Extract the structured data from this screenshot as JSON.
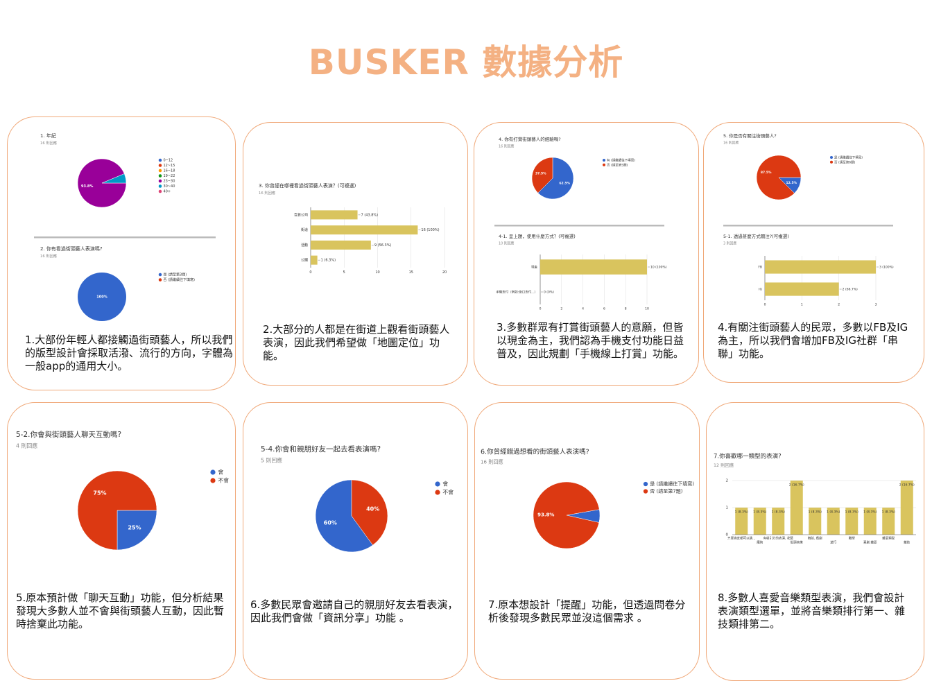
{
  "title": "BUSKER 數據分析",
  "cards": [
    {
      "caption": "1.大部份年輕人都接觸過街頭藝人，所以我們的版型設計會採取活潑、流行的方向，字體為一般app的通用大小。",
      "charts": [
        {
          "type": "pie",
          "title": "1. 年紀",
          "subtitle": "16 則回應",
          "categories": [
            "0~12",
            "12~15",
            "16~18",
            "19~22",
            "23~30",
            "30~40",
            "40+"
          ],
          "values": [
            0,
            0,
            0,
            0,
            93.8,
            6.3,
            0
          ],
          "value_labels": [
            null,
            null,
            null,
            null,
            "93.8%",
            null,
            null
          ],
          "colors": [
            "#3366cc",
            "#dc3912",
            "#ff9900",
            "#109618",
            "#990099",
            "#0099c6",
            "#dd4477"
          ]
        },
        {
          "type": "pie",
          "title": "2. 你有看過街頭藝人表演嗎?",
          "subtitle": "16 則回應",
          "categories": [
            "是 (請至第3題)",
            "否 (請繼續往下填寫)"
          ],
          "values": [
            100,
            0
          ],
          "value_labels": [
            "100%",
            null
          ],
          "colors": [
            "#3366cc",
            "#dc3912"
          ]
        }
      ]
    },
    {
      "caption": "2.大部分的人都是在街道上觀看街頭藝人表演，因此我們希望做「地圖定位」功能。",
      "charts": [
        {
          "type": "hbar",
          "title": "3. 你曾經在哪裡看過街頭藝人表演？(可複選)",
          "subtitle": "16 則回應",
          "categories": [
            "百貨公司",
            "街道",
            "活動",
            "公園"
          ],
          "values": [
            7,
            16,
            9,
            1
          ],
          "value_labels": [
            "7 (43.8%)",
            "16 (100%)",
            "9 (56.3%)",
            "1 (6.3%)"
          ],
          "color": "#d9c45e",
          "xlim": [
            0,
            20
          ],
          "xticks": [
            0,
            5,
            10,
            15,
            20
          ],
          "grid": true
        }
      ]
    },
    {
      "caption": "3.多數群眾有打賞街頭藝人的意願，但皆以現金為主，我們認為手機支付功能日益普及，因此規劃「手機線上打賞」功能。",
      "charts": [
        {
          "type": "pie",
          "title": "4. 你有打賞街頭藝人的經驗嗎?",
          "subtitle": "16 則回應",
          "categories": [
            "有 (請繼續往下填寫)",
            "否 (請至第5題)"
          ],
          "values": [
            62.5,
            37.5
          ],
          "value_labels": [
            "62.5%",
            "37.5%"
          ],
          "colors": [
            "#3366cc",
            "#dc3912"
          ]
        },
        {
          "type": "hbar",
          "title": "4-1. 呈上題，使用什麼方式？(可複選)",
          "subtitle": "10 則回應",
          "categories": [
            "現金",
            "手機支付（例如:街口支付...）"
          ],
          "values": [
            10,
            0
          ],
          "value_labels": [
            "10 (100%)",
            "0 (0%)"
          ],
          "color": "#d9c45e",
          "xlim": [
            0,
            10
          ],
          "xticks": [
            0,
            2,
            4,
            6,
            8,
            10
          ],
          "grid": true
        }
      ]
    },
    {
      "caption": "4.有關注街頭藝人的民眾，多數以FB及IG為主，所以我們會增加FB及IG社群「串聯」功能。",
      "charts": [
        {
          "type": "pie",
          "title": "5. 你是否有關注街頭藝人?",
          "subtitle": "16 則回應",
          "categories": [
            "是 (請繼續往下填寫)",
            "否 (請至第6題)"
          ],
          "values": [
            12.5,
            87.5
          ],
          "value_labels": [
            "12.5%",
            "87.5%"
          ],
          "colors": [
            "#3366cc",
            "#dc3912"
          ]
        },
        {
          "type": "hbar",
          "title": "5-1. 透過甚麼方式關注?(可複選)",
          "subtitle": "3 則回應",
          "categories": [
            "FB",
            "IG"
          ],
          "values": [
            3,
            2
          ],
          "value_labels": [
            "3 (100%)",
            "2 (66.7%)"
          ],
          "color": "#d9c45e",
          "xlim": [
            0,
            3
          ],
          "xticks": [
            0,
            1,
            2,
            3
          ],
          "grid": true
        }
      ]
    },
    {
      "caption": "5.原本預計做「聊天互動」功能，但分析結果發現大多數人並不會與街頭藝人互動，因此暫時捨棄此功能。",
      "charts": [
        {
          "type": "pie",
          "title": "5-2.你會與街頭藝人聊天互動嗎?",
          "subtitle": "4 則回應",
          "categories": [
            "會",
            "不會"
          ],
          "values": [
            25,
            75
          ],
          "value_labels": [
            "25%",
            "75%"
          ],
          "colors": [
            "#3366cc",
            "#dc3912"
          ]
        }
      ]
    },
    {
      "caption": "6.多數民眾會邀請自己的親朋好友去看表演，因此我們會做「資訊分享」功能 。",
      "charts": [
        {
          "type": "pie",
          "title": "5-4.你會和親朋好友一起去看表演嗎?",
          "subtitle": "5 則回應",
          "categories": [
            "會",
            "不會"
          ],
          "values": [
            60,
            40
          ],
          "value_labels": [
            "60%",
            "40%"
          ],
          "colors": [
            "#3366cc",
            "#dc3912"
          ]
        }
      ]
    },
    {
      "caption": "7.原本想設計「提醒」功能，但透過問卷分析後發現多數民眾並沒這個需求 。",
      "charts": [
        {
          "type": "pie",
          "title": "6.你曾經錯過想看的街頭藝人表演嗎?",
          "subtitle": "16 則回應",
          "categories": [
            "是 (請繼續往下填寫)",
            "否 (請至第7題)"
          ],
          "values": [
            6.3,
            93.8
          ],
          "value_labels": [
            null,
            "93.8%"
          ],
          "colors": [
            "#3366cc",
            "#dc3912"
          ]
        }
      ]
    },
    {
      "caption": "8.多數人喜愛音樂類型表演，我們會設計表演類型選單，並將音樂類排行第一、雜技類排第二。",
      "charts": [
        {
          "type": "vbar",
          "title": "7.你喜歡哪一類型的表演?",
          "subtitle": "12 則回應",
          "categories": [
            "只要適宜都可以跳...",
            "魔術",
            "有吸引力的表演, 花藝",
            "街頭音樂",
            "舞蹈, 戲劇",
            "遊行",
            "雕塑",
            "喜劇 雜耍",
            "雜耍類型",
            "雜技"
          ],
          "values": [
            1,
            1,
            1,
            2,
            1,
            1,
            1,
            1,
            1,
            2
          ],
          "value_labels": [
            "1 (8.3%)",
            "1 (8.3%)",
            "1 (8.3%)",
            "2 (16.7%)",
            "1 (8.3%)",
            "1 (8.3%)",
            "1 (8.3%)",
            "1 (8.3%)",
            "1 (8.3%)",
            "2 (16.7%)"
          ],
          "color": "#d9c45e",
          "ylim": [
            0,
            2
          ],
          "yticks": [
            0,
            1,
            2
          ],
          "grid": true
        }
      ]
    }
  ]
}
